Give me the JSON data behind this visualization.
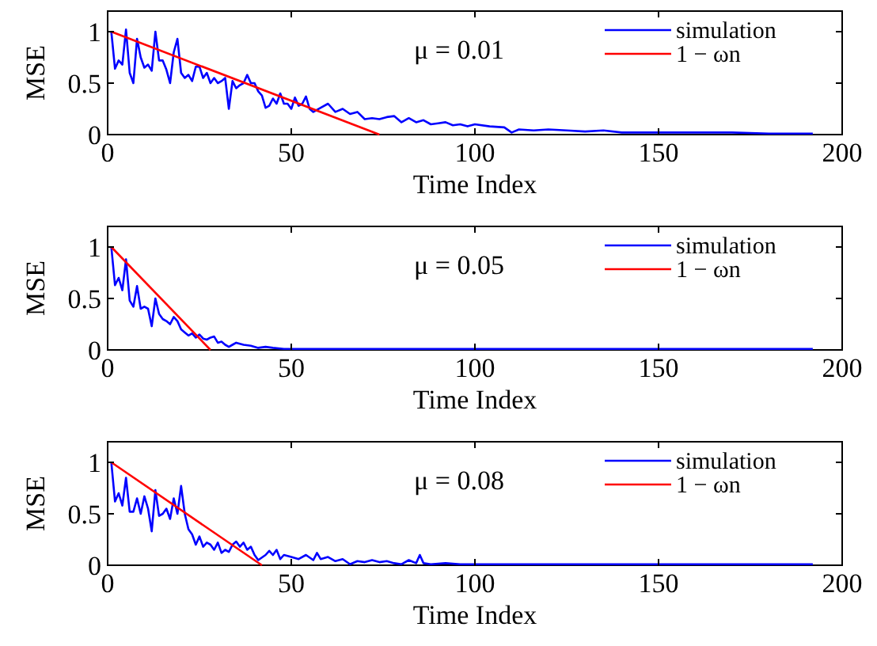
{
  "chart_data": [
    {
      "type": "line",
      "xlabel": "Time Index",
      "ylabel": "MSE",
      "annotations": [
        "μ = 0.01"
      ],
      "xlim": [
        0,
        200
      ],
      "xticks": [
        0,
        50,
        100,
        150,
        200
      ],
      "ylim": [
        0,
        1.2
      ],
      "yticks": [
        0,
        0.5,
        1
      ],
      "legend": "top right",
      "grid": false,
      "series": [
        {
          "name": "simulation",
          "color": "#0000ff",
          "x": [
            1,
            2,
            3,
            4,
            5,
            6,
            7,
            8,
            9,
            10,
            11,
            12,
            13,
            14,
            15,
            16,
            17,
            18,
            19,
            20,
            21,
            22,
            23,
            24,
            25,
            26,
            27,
            28,
            29,
            30,
            31,
            32,
            33,
            34,
            35,
            36,
            37,
            38,
            39,
            40,
            41,
            42,
            43,
            44,
            45,
            46,
            47,
            48,
            49,
            50,
            51,
            52,
            53,
            54,
            55,
            56,
            58,
            60,
            62,
            64,
            66,
            68,
            70,
            72,
            74,
            76,
            78,
            80,
            82,
            84,
            86,
            88,
            90,
            92,
            94,
            96,
            98,
            100,
            104,
            108,
            110,
            112,
            116,
            120,
            125,
            130,
            135,
            140,
            150,
            160,
            170,
            180,
            192
          ],
          "values": [
            1,
            0.64,
            0.72,
            0.68,
            1.02,
            0.6,
            0.5,
            0.93,
            0.75,
            0.65,
            0.68,
            0.62,
            1.0,
            0.72,
            0.72,
            0.63,
            0.5,
            0.8,
            0.93,
            0.6,
            0.55,
            0.58,
            0.52,
            0.66,
            0.66,
            0.55,
            0.6,
            0.5,
            0.55,
            0.5,
            0.52,
            0.55,
            0.25,
            0.52,
            0.45,
            0.48,
            0.5,
            0.58,
            0.5,
            0.5,
            0.42,
            0.38,
            0.26,
            0.28,
            0.35,
            0.3,
            0.4,
            0.3,
            0.3,
            0.25,
            0.36,
            0.28,
            0.3,
            0.37,
            0.25,
            0.22,
            0.26,
            0.3,
            0.22,
            0.25,
            0.2,
            0.22,
            0.15,
            0.16,
            0.15,
            0.17,
            0.18,
            0.12,
            0.16,
            0.12,
            0.14,
            0.1,
            0.11,
            0.12,
            0.09,
            0.1,
            0.08,
            0.1,
            0.08,
            0.07,
            0.02,
            0.05,
            0.04,
            0.05,
            0.04,
            0.03,
            0.04,
            0.02,
            0.02,
            0.02,
            0.02,
            0.01,
            0.01
          ]
        },
        {
          "name": "1 − ωn",
          "color": "#ff0000",
          "x": [
            1,
            74
          ],
          "values": [
            1,
            0
          ]
        }
      ]
    },
    {
      "type": "line",
      "xlabel": "Time Index",
      "ylabel": "MSE",
      "annotations": [
        "μ = 0.05"
      ],
      "xlim": [
        0,
        200
      ],
      "xticks": [
        0,
        50,
        100,
        150,
        200
      ],
      "ylim": [
        0,
        1.2
      ],
      "yticks": [
        0,
        0.5,
        1
      ],
      "legend": "top right",
      "grid": false,
      "series": [
        {
          "name": "simulation",
          "color": "#0000ff",
          "x": [
            1,
            2,
            3,
            4,
            5,
            6,
            7,
            8,
            9,
            10,
            11,
            12,
            13,
            14,
            15,
            16,
            17,
            18,
            19,
            20,
            21,
            22,
            23,
            24,
            25,
            26,
            27,
            28,
            29,
            30,
            31,
            32,
            33,
            34,
            35,
            37,
            39,
            41,
            43,
            45,
            48,
            52,
            60,
            80,
            192
          ],
          "values": [
            1,
            0.63,
            0.7,
            0.58,
            0.88,
            0.48,
            0.42,
            0.62,
            0.4,
            0.42,
            0.4,
            0.23,
            0.5,
            0.35,
            0.3,
            0.28,
            0.25,
            0.32,
            0.28,
            0.2,
            0.17,
            0.14,
            0.16,
            0.12,
            0.15,
            0.11,
            0.1,
            0.12,
            0.13,
            0.07,
            0.08,
            0.05,
            0.03,
            0.05,
            0.07,
            0.05,
            0.04,
            0.02,
            0.03,
            0.02,
            0.01,
            0.01,
            0.01,
            0.01,
            0.01
          ]
        },
        {
          "name": "1 − ωn",
          "color": "#ff0000",
          "x": [
            1,
            28
          ],
          "values": [
            1,
            0
          ]
        }
      ]
    },
    {
      "type": "line",
      "xlabel": "Time Index",
      "ylabel": "MSE",
      "annotations": [
        "μ = 0.08"
      ],
      "xlim": [
        0,
        200
      ],
      "xticks": [
        0,
        50,
        100,
        150,
        200
      ],
      "ylim": [
        0,
        1.2
      ],
      "yticks": [
        0,
        0.5,
        1
      ],
      "legend": "top right",
      "grid": false,
      "series": [
        {
          "name": "simulation",
          "color": "#0000ff",
          "x": [
            1,
            2,
            3,
            4,
            5,
            6,
            7,
            8,
            9,
            10,
            11,
            12,
            13,
            14,
            15,
            16,
            17,
            18,
            19,
            20,
            21,
            22,
            23,
            24,
            25,
            26,
            27,
            28,
            29,
            30,
            31,
            32,
            33,
            34,
            35,
            36,
            37,
            38,
            39,
            40,
            41,
            43,
            44,
            45,
            46,
            47,
            48,
            50,
            52,
            54,
            56,
            57,
            58,
            60,
            62,
            64,
            66,
            68,
            70,
            72,
            74,
            76,
            78,
            80,
            82,
            84,
            85,
            86,
            88,
            92,
            96,
            100,
            110,
            130,
            150,
            192
          ],
          "values": [
            1,
            0.62,
            0.7,
            0.58,
            0.85,
            0.52,
            0.52,
            0.65,
            0.5,
            0.67,
            0.55,
            0.33,
            0.73,
            0.48,
            0.5,
            0.55,
            0.45,
            0.65,
            0.5,
            0.77,
            0.5,
            0.35,
            0.3,
            0.2,
            0.28,
            0.18,
            0.22,
            0.2,
            0.15,
            0.22,
            0.12,
            0.15,
            0.13,
            0.2,
            0.23,
            0.18,
            0.22,
            0.15,
            0.18,
            0.1,
            0.05,
            0.1,
            0.14,
            0.1,
            0.15,
            0.06,
            0.1,
            0.08,
            0.06,
            0.1,
            0.05,
            0.12,
            0.06,
            0.08,
            0.04,
            0.06,
            0.01,
            0.04,
            0.03,
            0.05,
            0.03,
            0.04,
            0.02,
            0.01,
            0.05,
            0.02,
            0.1,
            0.02,
            0.01,
            0.02,
            0.01,
            0.01,
            0.01,
            0.01,
            0.01,
            0.01
          ]
        },
        {
          "name": "1 − ωn",
          "color": "#ff0000",
          "x": [
            1,
            42
          ],
          "values": [
            1,
            0
          ]
        }
      ]
    }
  ]
}
